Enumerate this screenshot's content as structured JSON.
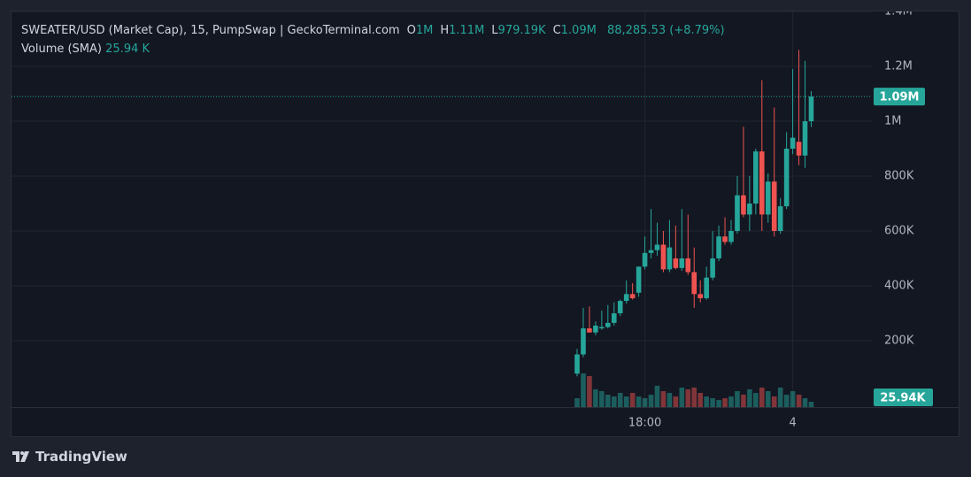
{
  "chart_data": {
    "type": "candlestick",
    "title": "SWEATER/USD (Market Cap), 15, PumpSwap | GeckoTerminal.com",
    "legend": [
      {
        "key": "O",
        "label": "1M"
      },
      {
        "key": "H",
        "label": "1.11M"
      },
      {
        "key": "L",
        "label": "979.19K"
      },
      {
        "key": "C",
        "label": "1.09M"
      }
    ],
    "change": "88,285.53 (+8.79%)",
    "volume_title": "Volume (SMA)",
    "volume_sma": 25940,
    "volume_sma_label": "25.94 K",
    "volume_sma_badge": "25.94K",
    "categories": [
      null,
      null,
      null,
      null,
      null,
      null,
      null,
      null,
      null,
      null,
      null,
      "18:00",
      null,
      null,
      null,
      null,
      null,
      null,
      null,
      null,
      null,
      null,
      null,
      null,
      null,
      null,
      null,
      null,
      null,
      null,
      null,
      null,
      null,
      null,
      null,
      "4",
      null,
      null,
      null
    ],
    "open": [
      80000,
      150000,
      245000,
      230000,
      245000,
      250000,
      265000,
      300000,
      345000,
      370000,
      375000,
      470000,
      520000,
      530000,
      550000,
      460000,
      500000,
      465000,
      500000,
      450000,
      370000,
      355000,
      430000,
      500000,
      580000,
      560000,
      600000,
      730000,
      660000,
      700000,
      890000,
      660000,
      780000,
      600000,
      690000,
      900000,
      925000,
      875000,
      1000000
    ],
    "high": [
      170000,
      320000,
      325000,
      270000,
      310000,
      330000,
      340000,
      350000,
      420000,
      410000,
      470000,
      580000,
      680000,
      630000,
      600000,
      640000,
      620000,
      680000,
      660000,
      540000,
      420000,
      470000,
      600000,
      620000,
      650000,
      640000,
      800000,
      980000,
      800000,
      900000,
      1150000,
      810000,
      1050000,
      720000,
      960000,
      1190000,
      1260000,
      1220000,
      1110000
    ],
    "low": [
      70000,
      140000,
      230000,
      220000,
      240000,
      245000,
      255000,
      290000,
      335000,
      350000,
      360000,
      460000,
      500000,
      510000,
      450000,
      450000,
      460000,
      455000,
      440000,
      320000,
      340000,
      350000,
      420000,
      490000,
      550000,
      550000,
      590000,
      650000,
      600000,
      660000,
      600000,
      630000,
      580000,
      590000,
      680000,
      880000,
      840000,
      830000,
      979190
    ],
    "close": [
      150000,
      245000,
      230000,
      255000,
      250000,
      265000,
      300000,
      345000,
      370000,
      355000,
      470000,
      520000,
      530000,
      550000,
      460000,
      540000,
      465000,
      500000,
      450000,
      370000,
      355000,
      430000,
      500000,
      580000,
      560000,
      600000,
      730000,
      660000,
      700000,
      890000,
      660000,
      780000,
      600000,
      690000,
      900000,
      940000,
      875000,
      1000000,
      1090000
    ],
    "volume": [
      23600,
      89600,
      82500,
      47200,
      42400,
      33000,
      28300,
      37700,
      28300,
      37700,
      28300,
      23600,
      33000,
      56600,
      42400,
      37700,
      28300,
      51900,
      47200,
      51900,
      37700,
      28300,
      23600,
      18900,
      23600,
      28300,
      42400,
      33000,
      47200,
      37700,
      51900,
      42400,
      28300,
      51900,
      33000,
      42400,
      33000,
      23600,
      14100
    ],
    "up_color": "#26a69a",
    "down_color": "#ef5350",
    "ylim": [
      0,
      1400000
    ],
    "yticks": [
      {
        "value": 200000,
        "label": "200K"
      },
      {
        "value": 400000,
        "label": "400K"
      },
      {
        "value": 600000,
        "label": "600K"
      },
      {
        "value": 800000,
        "label": "800K"
      },
      {
        "value": 1000000,
        "label": "1M"
      },
      {
        "value": 1200000,
        "label": "1.2M"
      },
      {
        "value": 1400000,
        "label": "1.4M"
      }
    ],
    "volume_ylim": [
      0,
      200000
    ],
    "grid": true,
    "brand": "TradingView"
  }
}
